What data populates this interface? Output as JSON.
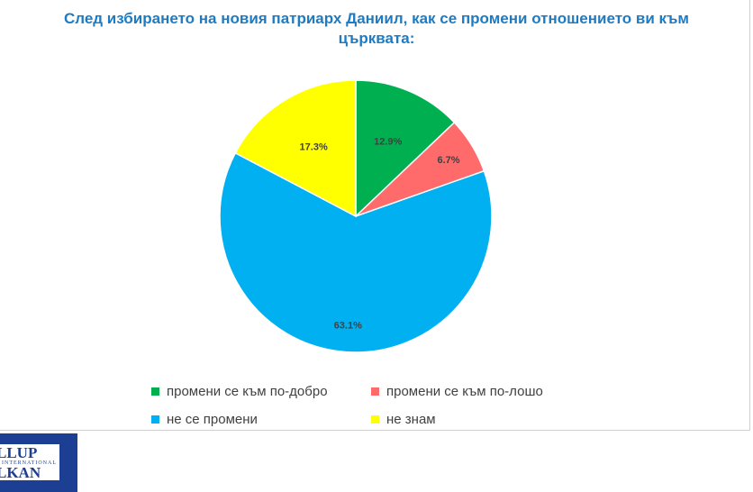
{
  "chart_data": {
    "type": "pie",
    "title": "След избирането на новия патриарх Даниил, как се промени отношението ви към църквата:",
    "categories": [
      "промени се към по-добро",
      "промени се към по-лошо",
      "не се промени",
      "не знам"
    ],
    "values": [
      12.9,
      6.7,
      63.1,
      17.3
    ],
    "labels": [
      "12.9%",
      "6.7%",
      "63.1%",
      "17.3%"
    ],
    "colors": [
      "#00b050",
      "#ff6b6b",
      "#00b0f0",
      "#ffff00"
    ],
    "legend_position": "bottom"
  },
  "logo": {
    "top": "LLUP",
    "middle": "INTERNATIONAL",
    "bottom": "LKAN"
  }
}
